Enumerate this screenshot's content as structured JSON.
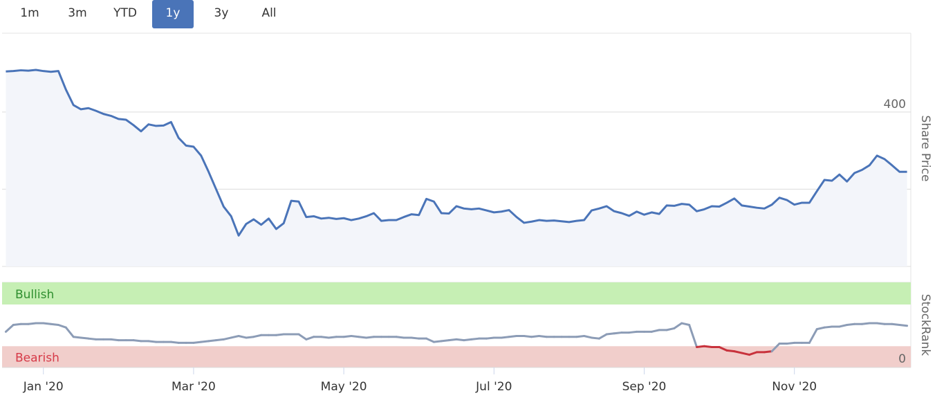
{
  "range_selector": {
    "buttons": [
      "1m",
      "3m",
      "YTD",
      "1y",
      "3y",
      "All"
    ],
    "selected": 3
  },
  "chart_data": {
    "type": "line",
    "x": [
      0.5,
      0.6,
      0.7,
      0.8,
      0.9,
      1.0,
      1.1,
      1.2,
      1.3,
      1.4,
      1.5,
      1.6,
      1.7,
      1.8,
      1.9,
      2.0,
      2.1,
      2.2,
      2.3,
      2.4,
      2.5,
      2.6,
      2.7,
      2.8,
      2.9,
      3.0,
      3.1,
      3.2,
      3.3,
      3.4,
      3.5,
      3.6,
      3.7,
      3.8,
      3.9,
      4.0,
      4.1,
      4.2,
      4.3,
      4.4,
      4.5,
      4.6,
      4.7,
      4.8,
      4.9,
      5.0,
      5.1,
      5.2,
      5.3,
      5.4,
      5.5,
      5.6,
      5.7,
      5.8,
      5.9,
      6.0,
      6.1,
      6.2,
      6.3,
      6.4,
      6.5,
      6.6,
      6.7,
      6.8,
      6.9,
      7.0,
      7.1,
      7.2,
      7.3,
      7.4,
      7.5,
      7.6,
      7.7,
      7.8,
      7.9,
      8.0,
      8.1,
      8.2,
      8.3,
      8.4,
      8.5,
      8.6,
      8.7,
      8.8,
      8.9,
      9.0,
      9.1,
      9.2,
      9.3,
      9.4,
      9.5,
      9.6,
      9.7,
      9.8,
      9.9,
      10.0,
      10.1,
      10.2,
      10.3,
      10.4,
      10.5,
      10.6,
      10.7,
      10.8,
      10.9,
      11.0,
      11.1,
      11.2,
      11.3,
      11.4,
      11.5,
      11.6,
      11.7,
      11.8,
      11.9,
      12.0,
      12.1,
      12.2,
      12.3,
      12.4,
      12.5
    ],
    "xlim": [
      0.45,
      12.55
    ],
    "xticks": [
      {
        "value": 1,
        "label": "Jan '20"
      },
      {
        "value": 3,
        "label": "Mar '20"
      },
      {
        "value": 5,
        "label": "May '20"
      },
      {
        "value": 7,
        "label": "Jul '20"
      },
      {
        "value": 9,
        "label": "Sep '20"
      },
      {
        "value": 11,
        "label": "Nov '20"
      }
    ],
    "ylim": [
      0,
      604
    ],
    "yticks": [
      0,
      200,
      400
    ],
    "y2lim": [
      0,
      100
    ],
    "y2ticks": [
      0
    ],
    "grid": true,
    "series": [
      {
        "name": "Share Price",
        "color": "#4a74b8",
        "values": [
          505,
          506,
          508,
          507,
          509,
          506,
          504,
          506,
          458,
          418,
          407,
          410,
          403,
          395,
          390,
          382,
          380,
          366,
          350,
          368,
          364,
          365,
          374,
          333,
          313,
          310,
          287,
          245,
          200,
          155,
          130,
          80,
          110,
          122,
          108,
          124,
          97,
          112,
          170,
          168,
          128,
          130,
          124,
          126,
          123,
          125,
          120,
          124,
          130,
          138,
          118,
          120,
          120,
          128,
          135,
          133,
          175,
          168,
          138,
          137,
          156,
          150,
          148,
          150,
          145,
          140,
          142,
          146,
          128,
          113,
          116,
          120,
          118,
          119,
          117,
          115,
          118,
          120,
          145,
          150,
          156,
          143,
          138,
          131,
          142,
          134,
          140,
          136,
          158,
          157,
          162,
          160,
          143,
          148,
          156,
          155,
          165,
          176,
          158,
          155,
          152,
          150,
          160,
          178,
          172,
          160,
          165,
          165,
          195,
          224,
          222,
          238,
          220,
          242,
          250,
          262,
          287,
          278,
          262,
          245,
          245
        ]
      },
      {
        "name": "StockRank",
        "axis": "y2",
        "color": "#8c9cb6",
        "values": [
          42,
          50,
          51,
          51,
          52,
          52,
          51,
          50,
          47,
          36,
          35,
          34,
          33,
          33,
          33,
          32,
          32,
          32,
          31,
          31,
          30,
          30,
          30,
          29,
          29,
          29,
          30,
          31,
          32,
          33,
          35,
          37,
          35,
          36,
          38,
          38,
          38,
          39,
          39,
          39,
          33,
          36,
          36,
          35,
          36,
          36,
          37,
          36,
          35,
          36,
          36,
          36,
          36,
          35,
          35,
          34,
          34,
          30,
          31,
          32,
          33,
          32,
          33,
          34,
          34,
          35,
          35,
          36,
          37,
          37,
          36,
          37,
          36,
          36,
          36,
          36,
          36,
          37,
          35,
          34,
          39,
          40,
          41,
          41,
          42,
          42,
          42,
          44,
          44,
          46,
          52,
          50,
          24,
          25,
          24,
          24,
          20,
          19,
          17,
          15,
          18,
          18,
          19,
          28,
          28,
          29,
          29,
          29,
          45,
          47,
          48,
          48,
          50,
          51,
          51,
          52,
          52,
          51,
          51,
          50,
          49
        ]
      }
    ],
    "bands": [
      {
        "label": "Bullish",
        "from": 74,
        "to": 100,
        "color": "#c6efb4",
        "text_color": "#2f8f2f"
      },
      {
        "label": "Bearish",
        "from": 0,
        "to": 25,
        "color": "#f1cecb",
        "text_color": "#d63a48",
        "line_color": "#c8323c"
      }
    ]
  }
}
